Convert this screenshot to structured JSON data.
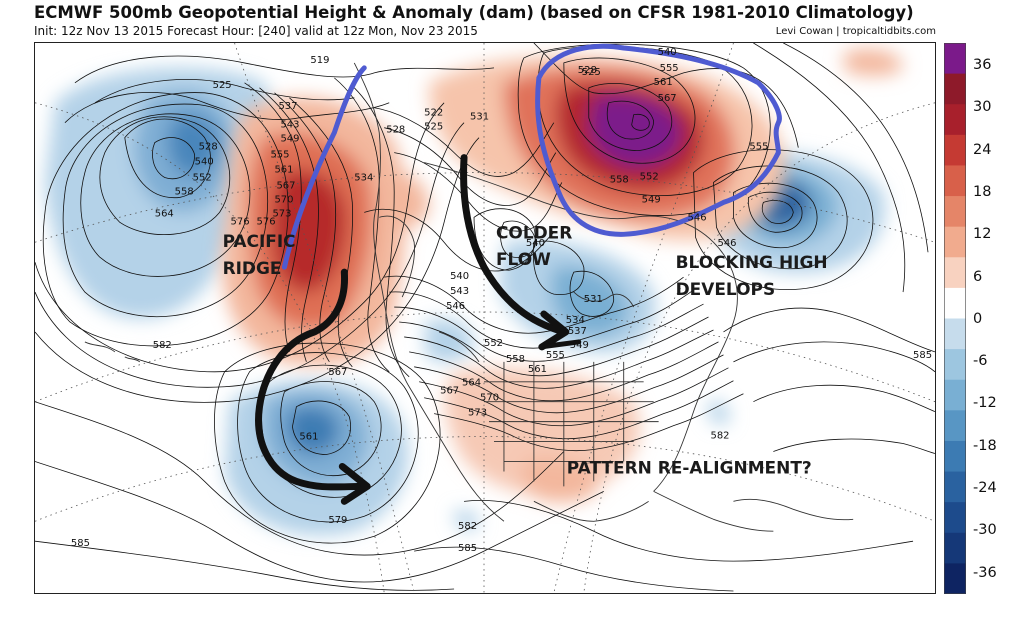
{
  "header": {
    "title": "ECMWF 500mb Geopotential Height & Anomaly (dam) (based on CFSR 1981-2010 Climatology)",
    "subtitle": "Init: 12z Nov 13 2015   Forecast Hour: [240]   valid at 12z Mon, Nov 23 2015",
    "credit": "Levi Cowan | tropicaltidbits.com"
  },
  "colorbar": {
    "ticks": [
      "36",
      "30",
      "24",
      "18",
      "12",
      "6",
      "0",
      "-6",
      "-12",
      "-18",
      "-24",
      "-30",
      "-36"
    ],
    "colors": [
      "#7b1a8a",
      "#8e1a2a",
      "#a8202c",
      "#c53a33",
      "#d8604a",
      "#e58568",
      "#f1ab8e",
      "#f8d2c0",
      "#ffffff",
      "#c6dcec",
      "#9dc6e0",
      "#79afd3",
      "#5896c4",
      "#3c7bb3",
      "#2a62a0",
      "#1d4b8c",
      "#153878",
      "#0e2462"
    ]
  },
  "annotations": {
    "pacific_ridge_1": "PACIFIC",
    "pacific_ridge_2": "RIDGE",
    "colder_flow_1": "COLDER",
    "colder_flow_2": "FLOW",
    "blocking_high_1": "BLOCKING HIGH",
    "blocking_high_2": "DEVELOPS",
    "pattern": "PATTERN RE-ALIGNMENT?"
  },
  "contour_labels": [
    "519",
    "525",
    "537",
    "543",
    "549",
    "555",
    "561",
    "567",
    "570",
    "573",
    "576",
    "528",
    "540",
    "552",
    "558",
    "564",
    "534",
    "522",
    "525",
    "528",
    "531",
    "540",
    "540",
    "543",
    "546",
    "552",
    "558",
    "555",
    "561",
    "564",
    "567",
    "570",
    "573",
    "531",
    "534",
    "537",
    "549",
    "567",
    "561",
    "579",
    "582",
    "582",
    "585",
    "585",
    "585",
    "582",
    "525",
    "528",
    "540",
    "555",
    "561",
    "567",
    "558",
    "552",
    "549",
    "546",
    "546",
    "555",
    "576"
  ]
}
